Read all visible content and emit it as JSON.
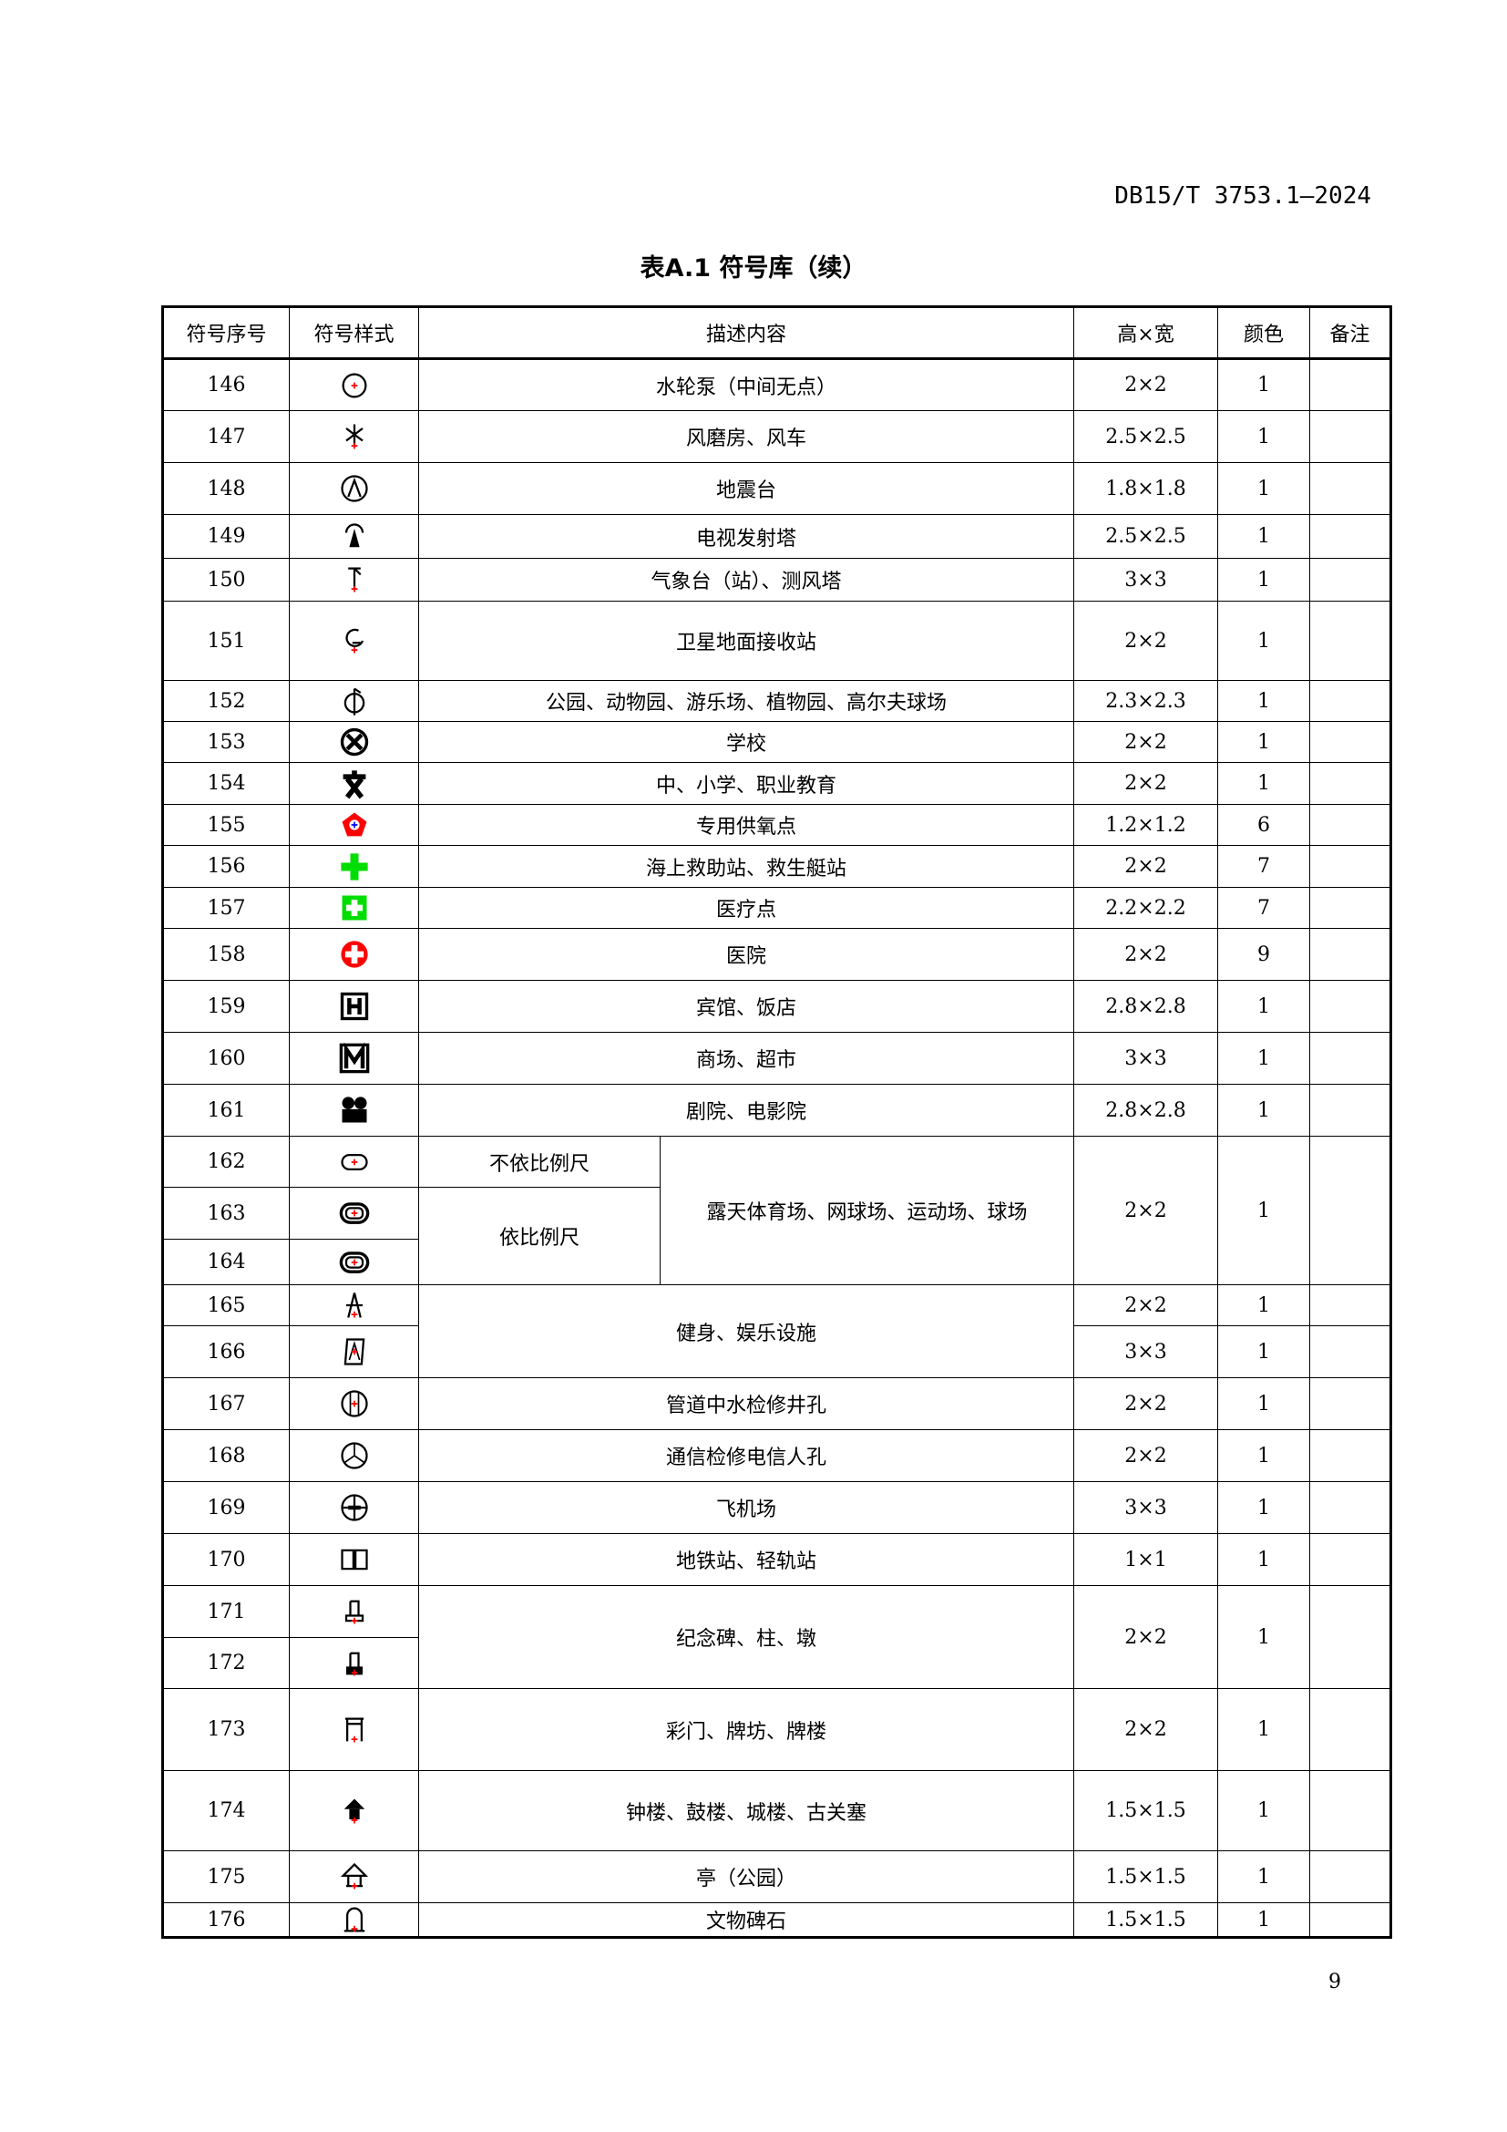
{
  "header": {
    "doc_code": "DB15/T 3753.1—2024",
    "table_title": "表A.1 符号库（续）"
  },
  "columns": [
    "符号序号",
    "符号样式",
    "描述内容",
    "高×宽",
    "颜色",
    "备注"
  ],
  "rows": [
    {
      "no": "146",
      "icon": "pump-circle-icon",
      "desc": "水轮泵（中间无点）",
      "size": "2×2",
      "color": "1"
    },
    {
      "no": "147",
      "icon": "windmill-icon",
      "desc": "风磨房、风车",
      "size": "2.5×2.5",
      "color": "1"
    },
    {
      "no": "148",
      "icon": "seismic-station-icon",
      "desc": "地震台",
      "size": "1.8×1.8",
      "color": "1"
    },
    {
      "no": "149",
      "icon": "tv-tower-icon",
      "desc": "电视发射塔",
      "size": "2.5×2.5",
      "color": "1"
    },
    {
      "no": "150",
      "icon": "weather-station-icon",
      "desc": "气象台（站）、测风塔",
      "size": "3×3",
      "color": "1"
    },
    {
      "no": "151",
      "icon": "satellite-station-icon",
      "desc": "卫星地面接收站",
      "size": "2×2",
      "color": "1"
    },
    {
      "no": "152",
      "icon": "park-icon",
      "desc": "公园、动物园、游乐场、植物园、高尔夫球场",
      "size": "2.3×2.3",
      "color": "1"
    },
    {
      "no": "153",
      "icon": "school-icon",
      "desc": "学校",
      "size": "2×2",
      "color": "1"
    },
    {
      "no": "154",
      "icon": "education-icon",
      "desc": "中、小学、职业教育",
      "size": "2×2",
      "color": "1"
    },
    {
      "no": "155",
      "icon": "oxygen-point-icon",
      "desc": "专用供氧点",
      "size": "1.2×1.2",
      "color": "6"
    },
    {
      "no": "156",
      "icon": "rescue-cross-icon",
      "desc": "海上救助站、救生艇站",
      "size": "2×2",
      "color": "7"
    },
    {
      "no": "157",
      "icon": "clinic-icon",
      "desc": "医疗点",
      "size": "2.2×2.2",
      "color": "7"
    },
    {
      "no": "158",
      "icon": "hospital-icon",
      "desc": "医院",
      "size": "2×2",
      "color": "9"
    },
    {
      "no": "159",
      "icon": "hotel-icon",
      "desc": "宾馆、饭店",
      "size": "2.8×2.8",
      "color": "1"
    },
    {
      "no": "160",
      "icon": "mall-icon",
      "desc": "商场、超市",
      "size": "3×3",
      "color": "1"
    },
    {
      "no": "161",
      "icon": "theater-icon",
      "desc": "剧院、电影院",
      "size": "2.8×2.8",
      "color": "1"
    },
    {
      "no": "162",
      "icon": "stadium-small-icon",
      "sub": "不依比例尺"
    },
    {
      "no": "163",
      "icon": "stadium-scaled-icon",
      "sub": "依比例尺"
    },
    {
      "no": "164",
      "icon": "stadium-scaled-2-icon"
    },
    {
      "no": "165",
      "icon": "fitness-icon",
      "size": "2×2",
      "color": "1"
    },
    {
      "no": "166",
      "icon": "fitness-frame-icon",
      "size": "3×3",
      "color": "1"
    },
    {
      "no": "167",
      "icon": "water-manhole-icon",
      "desc": "管道中水检修井孔",
      "size": "2×2",
      "color": "1"
    },
    {
      "no": "168",
      "icon": "telecom-manhole-icon",
      "desc": "通信检修电信人孔",
      "size": "2×2",
      "color": "1"
    },
    {
      "no": "169",
      "icon": "airport-icon",
      "desc": "飞机场",
      "size": "3×3",
      "color": "1"
    },
    {
      "no": "170",
      "icon": "subway-icon",
      "desc": "地铁站、轻轨站",
      "size": "1×1",
      "color": "1"
    },
    {
      "no": "171",
      "icon": "monument-icon"
    },
    {
      "no": "172",
      "icon": "monument-filled-icon"
    },
    {
      "no": "173",
      "icon": "archway-icon",
      "desc": "彩门、牌坊、牌楼",
      "size": "2×2",
      "color": "1"
    },
    {
      "no": "174",
      "icon": "tower-icon",
      "desc": "钟楼、鼓楼、城楼、古关塞",
      "size": "1.5×1.5",
      "color": "1"
    },
    {
      "no": "175",
      "icon": "pavilion-icon",
      "desc": "亭（公园）",
      "size": "1.5×1.5",
      "color": "1"
    },
    {
      "no": "176",
      "icon": "stele-icon",
      "desc": "文物碑石",
      "size": "1.5×1.5",
      "color": "1"
    }
  ],
  "merged": {
    "stadium": {
      "desc": "露天体育场、网球场、运动场、球场",
      "size": "2×2",
      "color": "1"
    },
    "fitness": {
      "desc": "健身、娱乐设施"
    },
    "monument": {
      "desc": "纪念碑、柱、墩",
      "size": "2×2",
      "color": "1"
    }
  },
  "colors": {
    "red": "#ff0000",
    "green": "#00ff00",
    "blue": "#0000ff"
  },
  "page_number": "9"
}
